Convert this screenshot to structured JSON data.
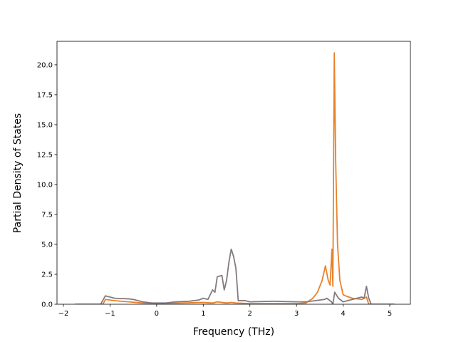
{
  "chart_data": {
    "type": "line",
    "xlabel": "Frequency (THz)",
    "ylabel": "Partial Density of States",
    "xlim": [
      -2.1375,
      5.443
    ],
    "ylim": [
      0,
      21.96
    ],
    "xticks": [
      {
        "value": -2,
        "label": "−2"
      },
      {
        "value": -1,
        "label": "−1"
      },
      0,
      1,
      2,
      3,
      4,
      5
    ],
    "yticks": [
      {
        "value": 0,
        "label": "0.0"
      },
      {
        "value": 2.5,
        "label": "2.5"
      },
      {
        "value": 5,
        "label": "5.0"
      },
      {
        "value": 7.5,
        "label": "7.5"
      },
      {
        "value": 10,
        "label": "10.0"
      },
      {
        "value": 12.5,
        "label": "12.5"
      },
      {
        "value": 15,
        "label": "15.0"
      },
      {
        "value": 17.5,
        "label": "17.5"
      },
      {
        "value": 20,
        "label": "20.0"
      }
    ],
    "series": [
      {
        "color": "#e8822a",
        "x": [
          -1.75,
          -1.15,
          -1.1,
          -0.9,
          -0.6,
          -0.3,
          0,
          0.5,
          1.0,
          1.2,
          1.3,
          1.5,
          1.6,
          1.7,
          2.0,
          3.0,
          3.2,
          3.35,
          3.45,
          3.55,
          3.62,
          3.68,
          3.72,
          3.76,
          3.78,
          3.81,
          3.84,
          3.88,
          3.93,
          4.0,
          4.05,
          4.2,
          4.4,
          4.5,
          4.55,
          5.1
        ],
        "values": [
          0,
          0,
          0.4,
          0.3,
          0.2,
          0.1,
          0.05,
          0.1,
          0.15,
          0.1,
          0.2,
          0.1,
          0.15,
          0.1,
          0.05,
          0.05,
          0.1,
          0.5,
          1.0,
          2.0,
          3.2,
          2.0,
          1.6,
          4.6,
          1.5,
          21,
          12,
          5,
          2.0,
          0.8,
          0.7,
          0.5,
          0.4,
          0.6,
          0,
          0
        ]
      },
      {
        "color": "#857a80",
        "x": [
          -1.75,
          -1.2,
          -1.1,
          -0.9,
          -0.6,
          -0.5,
          -0.3,
          -0.1,
          0.2,
          0.4,
          0.7,
          0.9,
          1.0,
          1.1,
          1.2,
          1.25,
          1.3,
          1.4,
          1.45,
          1.5,
          1.55,
          1.6,
          1.65,
          1.7,
          1.75,
          1.9,
          2.0,
          2.5,
          3.0,
          3.2,
          3.4,
          3.6,
          3.65,
          3.75,
          3.78,
          3.82,
          3.9,
          4.0,
          4.2,
          4.4,
          4.45,
          4.5,
          4.55,
          4.6,
          5.1
        ],
        "values": [
          0,
          0,
          0.7,
          0.5,
          0.45,
          0.4,
          0.2,
          0.1,
          0.1,
          0.2,
          0.25,
          0.35,
          0.5,
          0.4,
          1.2,
          1.0,
          2.3,
          2.4,
          1.2,
          2.0,
          3.5,
          4.6,
          4.0,
          3.0,
          0.3,
          0.3,
          0.2,
          0.25,
          0.2,
          0.2,
          0.3,
          0.4,
          0.5,
          0.2,
          0,
          1.0,
          0.5,
          0.2,
          0.4,
          0.6,
          0.5,
          1.5,
          0.5,
          0,
          0
        ]
      }
    ]
  }
}
